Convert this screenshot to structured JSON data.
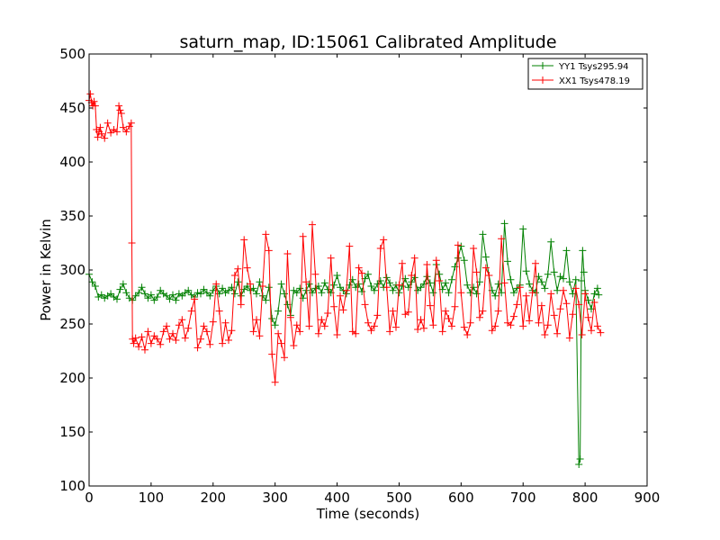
{
  "chart_data": {
    "type": "line",
    "title": "saturn_map, ID:15061 Calibrated Amplitude",
    "xlabel": "Time (seconds)",
    "ylabel": "Power in Kelvin",
    "xlim": [
      0,
      900
    ],
    "ylim": [
      100,
      500
    ],
    "xticks": [
      "0",
      "100",
      "200",
      "300",
      "400",
      "500",
      "600",
      "700",
      "800",
      "900"
    ],
    "yticks": [
      "100",
      "150",
      "200",
      "250",
      "300",
      "350",
      "400",
      "450",
      "500"
    ],
    "grid": false,
    "legend_position": "top-right",
    "marker": "+",
    "series": [
      {
        "name": "YY1 Tsys295.94",
        "color": "#008000",
        "x": [
          0,
          5,
          10,
          15,
          20,
          25,
          30,
          35,
          40,
          45,
          50,
          55,
          60,
          65,
          70,
          75,
          80,
          85,
          90,
          95,
          100,
          105,
          110,
          115,
          120,
          125,
          130,
          135,
          140,
          145,
          150,
          155,
          160,
          165,
          170,
          175,
          180,
          185,
          190,
          195,
          200,
          205,
          210,
          215,
          220,
          225,
          230,
          235,
          240,
          245,
          250,
          255,
          260,
          265,
          270,
          275,
          280,
          285,
          290,
          295,
          300,
          305,
          310,
          315,
          320,
          325,
          330,
          335,
          340,
          345,
          350,
          355,
          360,
          365,
          370,
          375,
          380,
          385,
          390,
          395,
          400,
          405,
          410,
          415,
          420,
          425,
          430,
          435,
          440,
          445,
          450,
          455,
          460,
          465,
          470,
          475,
          480,
          485,
          490,
          495,
          500,
          505,
          510,
          515,
          520,
          525,
          530,
          535,
          540,
          545,
          550,
          555,
          560,
          565,
          570,
          575,
          580,
          585,
          590,
          595,
          600,
          605,
          610,
          615,
          620,
          625,
          630,
          635,
          640,
          645,
          650,
          655,
          660,
          665,
          670,
          675,
          680,
          685,
          690,
          695,
          700,
          705,
          710,
          715,
          720,
          725,
          730,
          735,
          740,
          745,
          750,
          755,
          760,
          765,
          770,
          775,
          780,
          785,
          790,
          792,
          794,
          796,
          798,
          800,
          805,
          810,
          815,
          820,
          822
        ],
        "y": [
          296,
          289,
          285,
          275,
          277,
          274,
          276,
          278,
          275,
          273,
          282,
          287,
          279,
          274,
          272,
          276,
          279,
          284,
          278,
          274,
          277,
          272,
          275,
          281,
          278,
          276,
          273,
          277,
          272,
          278,
          276,
          279,
          281,
          277,
          275,
          279,
          278,
          282,
          279,
          276,
          281,
          285,
          278,
          283,
          279,
          281,
          284,
          278,
          289,
          276,
          282,
          285,
          281,
          283,
          278,
          289,
          276,
          272,
          284,
          255,
          249,
          262,
          287,
          278,
          268,
          258,
          281,
          279,
          283,
          274,
          281,
          287,
          279,
          283,
          285,
          279,
          288,
          282,
          279,
          286,
          295,
          284,
          281,
          278,
          286,
          291,
          284,
          287,
          280,
          292,
          296,
          285,
          281,
          287,
          290,
          284,
          293,
          288,
          281,
          286,
          279,
          285,
          292,
          284,
          289,
          293,
          281,
          284,
          287,
          294,
          288,
          279,
          305,
          296,
          282,
          288,
          279,
          291,
          303,
          311,
          322,
          309,
          286,
          279,
          284,
          278,
          289,
          333,
          312,
          295,
          281,
          276,
          287,
          279,
          343,
          308,
          291,
          279,
          283,
          286,
          338,
          299,
          287,
          281,
          279,
          294,
          289,
          283,
          296,
          326,
          298,
          281,
          294,
          292,
          318,
          289,
          278,
          291,
          120,
          125,
          290,
          318,
          298,
          281,
          272,
          264,
          278,
          283,
          277
        ]
      },
      {
        "name": "XX1 Tsys478.19",
        "color": "#ff0000",
        "x": [
          0,
          2,
          4,
          6,
          8,
          10,
          12,
          14,
          16,
          18,
          20,
          25,
          30,
          35,
          40,
          45,
          48,
          50,
          52,
          55,
          60,
          65,
          68,
          69,
          70,
          72,
          75,
          80,
          85,
          90,
          95,
          100,
          105,
          110,
          115,
          120,
          125,
          130,
          135,
          140,
          145,
          150,
          155,
          160,
          165,
          170,
          175,
          180,
          185,
          190,
          195,
          200,
          205,
          210,
          215,
          220,
          225,
          230,
          235,
          240,
          245,
          250,
          255,
          260,
          265,
          270,
          275,
          280,
          285,
          290,
          295,
          300,
          305,
          310,
          315,
          320,
          325,
          330,
          335,
          340,
          345,
          350,
          355,
          360,
          365,
          370,
          375,
          380,
          385,
          390,
          395,
          400,
          405,
          410,
          415,
          420,
          425,
          430,
          435,
          440,
          445,
          450,
          455,
          460,
          465,
          470,
          475,
          480,
          485,
          490,
          495,
          500,
          505,
          510,
          515,
          520,
          525,
          530,
          535,
          540,
          545,
          550,
          555,
          560,
          565,
          570,
          575,
          580,
          585,
          590,
          595,
          600,
          605,
          610,
          615,
          620,
          625,
          630,
          635,
          640,
          645,
          650,
          655,
          660,
          665,
          670,
          675,
          680,
          685,
          690,
          695,
          700,
          705,
          710,
          715,
          720,
          725,
          730,
          735,
          740,
          745,
          750,
          755,
          760,
          765,
          770,
          775,
          780,
          785,
          790,
          795,
          800,
          805,
          810,
          815,
          820,
          825
        ],
        "y": [
          457,
          463,
          455,
          452,
          456,
          452,
          430,
          423,
          428,
          432,
          426,
          422,
          436,
          427,
          430,
          428,
          452,
          448,
          445,
          432,
          428,
          433,
          436,
          325,
          236,
          232,
          237,
          229,
          238,
          226,
          243,
          232,
          239,
          236,
          231,
          243,
          248,
          236,
          241,
          235,
          249,
          254,
          237,
          246,
          262,
          273,
          228,
          236,
          248,
          243,
          231,
          252,
          287,
          262,
          232,
          251,
          235,
          244,
          295,
          301,
          268,
          328,
          302,
          287,
          243,
          254,
          239,
          285,
          333,
          318,
          222,
          196,
          241,
          232,
          219,
          315,
          256,
          230,
          249,
          243,
          331,
          289,
          248,
          342,
          296,
          241,
          254,
          248,
          260,
          311,
          266,
          240,
          276,
          263,
          281,
          322,
          243,
          241,
          302,
          297,
          268,
          251,
          244,
          248,
          258,
          320,
          328,
          284,
          243,
          262,
          247,
          286,
          306,
          259,
          261,
          295,
          311,
          245,
          254,
          246,
          305,
          267,
          249,
          309,
          290,
          243,
          262,
          255,
          248,
          266,
          323,
          279,
          247,
          240,
          251,
          320,
          298,
          256,
          262,
          302,
          295,
          244,
          248,
          262,
          329,
          288,
          251,
          249,
          257,
          268,
          284,
          248,
          276,
          253,
          279,
          306,
          251,
          267,
          240,
          249,
          278,
          258,
          241,
          264,
          281,
          269,
          237,
          259,
          283,
          268,
          240,
          278,
          256,
          244,
          270,
          248,
          242
        ]
      }
    ]
  }
}
